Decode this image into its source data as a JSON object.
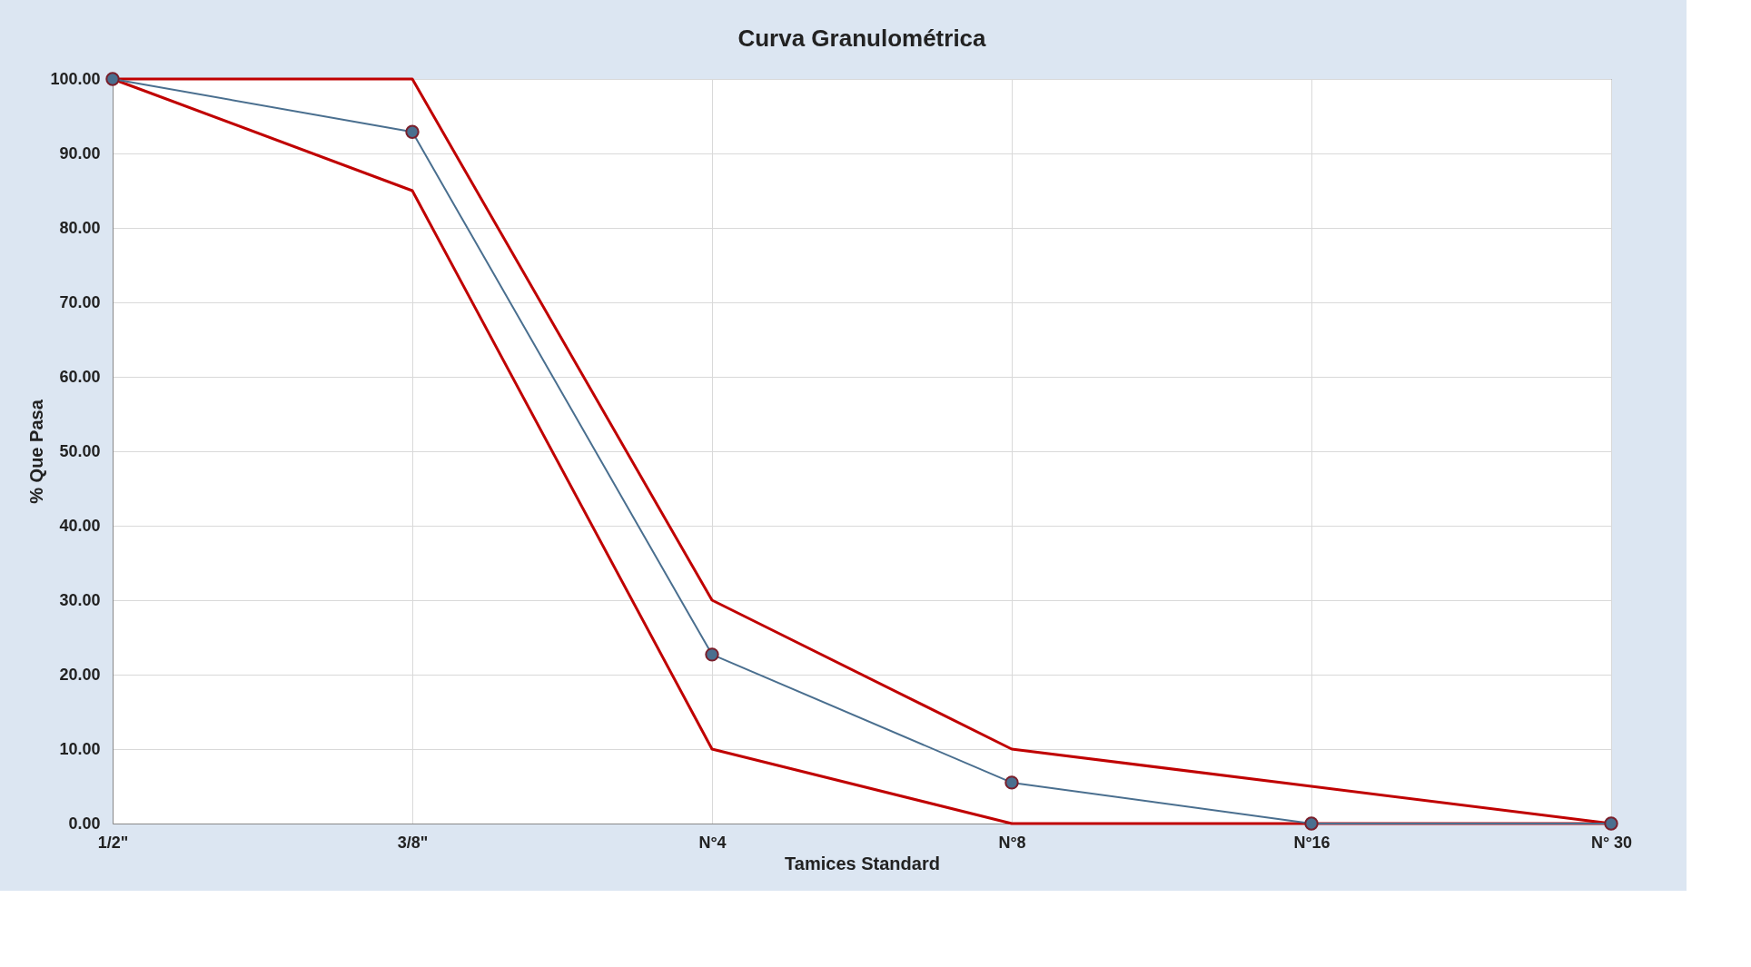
{
  "chart_data": {
    "type": "line",
    "title": "Curva Granulométrica",
    "xlabel": "Tamices Standard",
    "ylabel": "% Que Pasa",
    "categories": [
      "1/2\"",
      "3/8\"",
      "N°4",
      "N°8",
      "N°16",
      "N° 30"
    ],
    "series": [
      {
        "color": "#c00000",
        "values": [
          100,
          100,
          30,
          10,
          5,
          0
        ],
        "marker": "none"
      },
      {
        "color": "#c00000",
        "values": [
          100,
          85,
          10,
          0,
          0,
          0
        ],
        "marker": "none"
      },
      {
        "color": "#4a6f8f",
        "values": [
          100,
          92.9,
          22.7,
          5.5,
          0,
          0
        ],
        "marker": "circle"
      }
    ],
    "ylim": [
      0,
      100
    ],
    "yticks": [
      {
        "value": 0,
        "label": "0.00"
      },
      {
        "value": 10,
        "label": "10.00"
      },
      {
        "value": 20,
        "label": "20.00"
      },
      {
        "value": 30,
        "label": "30.00"
      },
      {
        "value": 40,
        "label": "40.00"
      },
      {
        "value": 50,
        "label": "50.00"
      },
      {
        "value": 60,
        "label": "60.00"
      },
      {
        "value": 70,
        "label": "70.00"
      },
      {
        "value": 80,
        "label": "80.00"
      },
      {
        "value": 90,
        "label": "90.00"
      },
      {
        "value": 100,
        "label": "100.00"
      }
    ],
    "grid": true,
    "line_style": "solid"
  }
}
